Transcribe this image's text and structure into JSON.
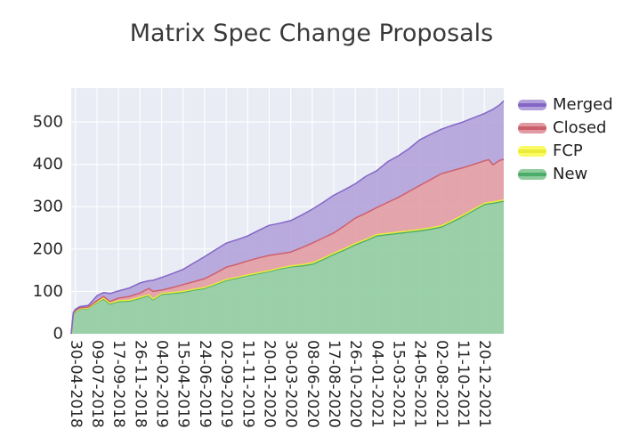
{
  "title": "Matrix Spec Change Proposals",
  "colors": {
    "figure_bg": "#ffffff",
    "plot_bg": "#e9ecf5",
    "grid": "#ffffff",
    "tick_text": "#262626",
    "title_text": "#3a3a3a"
  },
  "chart_data": {
    "type": "area",
    "stacked": true,
    "title": "Matrix Spec Change Proposals",
    "grid": true,
    "legend_position": "outside-upper-right",
    "x_axis": {
      "label": "",
      "tick_labels": [
        "30-04-2018",
        "09-07-2018",
        "17-09-2018",
        "26-11-2018",
        "04-02-2019",
        "15-04-2019",
        "24-06-2019",
        "02-09-2019",
        "11-11-2019",
        "20-01-2020",
        "30-03-2020",
        "08-06-2020",
        "17-08-2020",
        "26-10-2020",
        "04-01-2021",
        "15-03-2021",
        "24-05-2021",
        "02-08-2021",
        "11-10-2021",
        "20-12-2021"
      ],
      "tick_weeks": [
        2,
        12,
        22,
        32,
        42,
        52,
        62,
        72,
        82,
        92,
        102,
        112,
        122,
        132,
        142,
        152,
        162,
        172,
        182,
        192
      ],
      "total_weeks": 201
    },
    "y_axis": {
      "label": "",
      "ticks": [
        0,
        100,
        200,
        300,
        400,
        500
      ],
      "max": 580
    },
    "series": [
      {
        "name": "New",
        "fill": "#8ecb9d",
        "edge": "#4aad69"
      },
      {
        "name": "FCP",
        "fill": "#fafa64",
        "edge": "#ebeb3a"
      },
      {
        "name": "Closed",
        "fill": "#e29aa2",
        "edge": "#cd5f6d"
      },
      {
        "name": "Merged",
        "fill": "#b2a0db",
        "edge": "#8366c6"
      }
    ],
    "legend_order": [
      "Merged",
      "Closed",
      "FCP",
      "New"
    ],
    "sample_columns": [
      "week",
      "New",
      "FCP",
      "Closed",
      "Merged"
    ],
    "samples": [
      [
        0,
        0,
        0,
        0,
        0
      ],
      [
        1,
        45,
        1,
        2,
        2
      ],
      [
        2,
        52,
        1,
        2,
        3
      ],
      [
        4,
        58,
        1,
        2,
        3
      ],
      [
        8,
        60,
        1,
        2,
        4
      ],
      [
        12,
        74,
        1,
        3,
        12
      ],
      [
        15,
        82,
        2,
        4,
        9
      ],
      [
        18,
        70,
        2,
        4,
        19
      ],
      [
        22,
        76,
        2,
        6,
        17
      ],
      [
        27,
        77,
        2,
        9,
        20
      ],
      [
        32,
        84,
        2,
        10,
        24
      ],
      [
        36,
        90,
        2,
        15,
        18
      ],
      [
        38,
        80,
        2,
        18,
        26
      ],
      [
        42,
        93,
        2,
        8,
        30
      ],
      [
        47,
        95,
        2,
        12,
        33
      ],
      [
        52,
        98,
        2,
        16,
        36
      ],
      [
        57,
        103,
        2,
        18,
        44
      ],
      [
        62,
        107,
        2,
        21,
        52
      ],
      [
        67,
        116,
        2,
        25,
        55
      ],
      [
        72,
        126,
        2,
        29,
        57
      ],
      [
        77,
        131,
        2,
        31,
        58
      ],
      [
        82,
        137,
        2,
        33,
        59
      ],
      [
        87,
        142,
        2,
        35,
        65
      ],
      [
        92,
        147,
        2,
        36,
        71
      ],
      [
        97,
        153,
        2,
        34,
        72
      ],
      [
        102,
        158,
        2,
        33,
        74
      ],
      [
        107,
        160,
        3,
        40,
        77
      ],
      [
        112,
        164,
        3,
        47,
        80
      ],
      [
        117,
        175,
        3,
        48,
        84
      ],
      [
        122,
        187,
        3,
        48,
        89
      ],
      [
        127,
        198,
        3,
        54,
        85
      ],
      [
        132,
        210,
        3,
        60,
        81
      ],
      [
        137,
        220,
        3,
        62,
        87
      ],
      [
        142,
        231,
        3,
        64,
        87
      ],
      [
        147,
        234,
        3,
        73,
        96
      ],
      [
        152,
        237,
        3,
        82,
        98
      ],
      [
        157,
        240,
        3,
        93,
        101
      ],
      [
        162,
        243,
        3,
        104,
        108
      ],
      [
        167,
        247,
        3,
        114,
        107
      ],
      [
        172,
        252,
        3,
        123,
        105
      ],
      [
        177,
        264,
        3,
        118,
        107
      ],
      [
        182,
        277,
        3,
        112,
        108
      ],
      [
        187,
        291,
        3,
        106,
        110
      ],
      [
        192,
        305,
        3,
        100,
        112
      ],
      [
        194,
        307,
        3,
        101,
        114
      ],
      [
        196,
        308,
        3,
        88,
        131
      ],
      [
        199,
        311,
        3,
        95,
        131
      ],
      [
        201,
        313,
        3,
        96,
        138
      ]
    ]
  }
}
